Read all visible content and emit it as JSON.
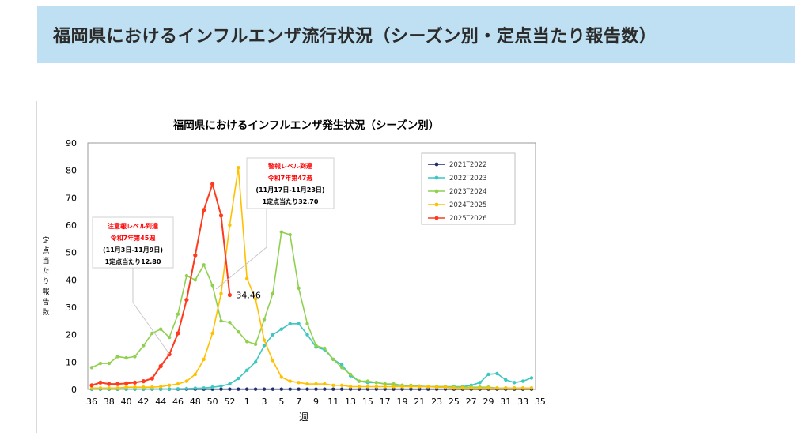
{
  "page": {
    "banner_title": "福岡県におけるインフルエンザ流行状況（シーズン別・定点当たり報告数）"
  },
  "colors": {
    "banner_bg": "#bfe0f2",
    "s2021": "#1f2d6b",
    "s2022": "#3cc7c0",
    "s2023": "#8fd14f",
    "s2024": "#ffc000",
    "s2025": "#ff3b1f",
    "annot_red": "#ff0000"
  },
  "chart_data": {
    "type": "line",
    "title": "福岡県におけるインフルエンザ発生状況（シーズン別）",
    "xlabel": "週",
    "ylabel": "定点当たり報告数",
    "ylim": [
      0,
      90
    ],
    "yticks": [
      "0",
      "10",
      "20",
      "30",
      "40",
      "50",
      "60",
      "70",
      "80",
      "90"
    ],
    "x_tick_labels": [
      "36",
      "38",
      "40",
      "42",
      "44",
      "46",
      "48",
      "50",
      "52",
      "1",
      "3",
      "5",
      "7",
      "9",
      "11",
      "13",
      "15",
      "17",
      "19",
      "21",
      "23",
      "25",
      "27",
      "29",
      "31",
      "33",
      "35"
    ],
    "x": [
      "36",
      "37",
      "38",
      "39",
      "40",
      "41",
      "42",
      "43",
      "44",
      "45",
      "46",
      "47",
      "48",
      "49",
      "50",
      "51",
      "52",
      "1",
      "2",
      "3",
      "4",
      "5",
      "6",
      "7",
      "8",
      "9",
      "10",
      "11",
      "12",
      "13",
      "14",
      "15",
      "16",
      "17",
      "18",
      "19",
      "20",
      "21",
      "22",
      "23",
      "24",
      "25",
      "26",
      "27",
      "28",
      "29",
      "30",
      "31",
      "32",
      "33",
      "34",
      "35"
    ],
    "legend_position": "top-right",
    "grid": false,
    "series": [
      {
        "name": "2021‾2022",
        "color_key": "s2021",
        "values": [
          0.1,
          0.1,
          0.1,
          0.1,
          0.1,
          0.1,
          0.1,
          0.1,
          0.1,
          0.1,
          0.1,
          0.1,
          0.1,
          0.1,
          0.1,
          0.1,
          0.1,
          0.1,
          0.1,
          0.1,
          0.1,
          0.1,
          0.1,
          0.1,
          0.1,
          0.1,
          0.1,
          0.1,
          0.1,
          0.1,
          0.1,
          0.1,
          0.1,
          0.1,
          0.1,
          0.1,
          0.1,
          0.1,
          0.1,
          0.1,
          0.1,
          0.1,
          0.1,
          0.1,
          0.1,
          0.1,
          0.1,
          0.1,
          0.1,
          0.1,
          0.1,
          0.1
        ]
      },
      {
        "name": "2022‾2023",
        "color_key": "s2022",
        "values": [
          0.1,
          0.1,
          0.1,
          0.1,
          0.1,
          0.1,
          0.1,
          0.1,
          0.1,
          0.1,
          0.2,
          0.3,
          0.4,
          0.5,
          0.8,
          1.2,
          2,
          4,
          7,
          10,
          16,
          20,
          22,
          24,
          24,
          20,
          15.5,
          14.5,
          11,
          9,
          5,
          3,
          2.5,
          2.5,
          2,
          1.5,
          1.5,
          1.2,
          1.2,
          1,
          1,
          1,
          1,
          1,
          1.5,
          2.5,
          5.5,
          5.8,
          3.5,
          2.5,
          3,
          4.2
        ]
      },
      {
        "name": "2023‾2024",
        "color_key": "s2023",
        "values": [
          8,
          9.5,
          9.5,
          12,
          11.5,
          12,
          16,
          20.5,
          22,
          19,
          27.5,
          41.5,
          40,
          45.5,
          38,
          25,
          24.5,
          21,
          17.5,
          16.5,
          25.5,
          35,
          57.5,
          56.5,
          37,
          24,
          16,
          15,
          11,
          8,
          5.5,
          3,
          3,
          2.5,
          2,
          2,
          1.5,
          1.5,
          1,
          1,
          1,
          1,
          0.8,
          0.8,
          0.8,
          0.8,
          0.8,
          0.5,
          0.5,
          0.5,
          0.5,
          0.5
        ]
      },
      {
        "name": "2024‾2025",
        "color_key": "s2024",
        "values": [
          0.5,
          0.5,
          0.5,
          0.5,
          0.8,
          0.8,
          0.8,
          0.8,
          1,
          1.5,
          2,
          3,
          5.5,
          11,
          20.5,
          35,
          60,
          81,
          40.5,
          33,
          18,
          10.5,
          4.5,
          3,
          2.5,
          2,
          2,
          2,
          1.5,
          1.5,
          1,
          1,
          1,
          1,
          1,
          1,
          1,
          1,
          1,
          1,
          0.8,
          0.8,
          0.5,
          0.5,
          0.5,
          0.5,
          0.5,
          0.5,
          0.5,
          0.5,
          0.5,
          0.5
        ]
      },
      {
        "name": "2025‾2026",
        "color_key": "s2025",
        "values": [
          1.5,
          2.5,
          2,
          2,
          2.2,
          2.5,
          3,
          4,
          8.5,
          12.8,
          20.5,
          32.7,
          49,
          65.5,
          75,
          63.5,
          34.46,
          null,
          null,
          null,
          null,
          null,
          null,
          null,
          null,
          null,
          null,
          null,
          null,
          null,
          null,
          null,
          null,
          null,
          null,
          null,
          null,
          null,
          null,
          null,
          null,
          null,
          null,
          null,
          null,
          null,
          null,
          null,
          null,
          null,
          null,
          null
        ]
      }
    ],
    "annotations": [
      {
        "lines": [
          "注意報レベル到達",
          "令和7年第45週",
          "(11月3日-11月9日)",
          "1定点当たり12.80"
        ]
      },
      {
        "lines": [
          "警報レベル到達",
          "令和7年第47週",
          "(11月17日-11月23日)",
          "1定点当たり32.70"
        ]
      },
      {
        "text": "34.46"
      }
    ]
  }
}
